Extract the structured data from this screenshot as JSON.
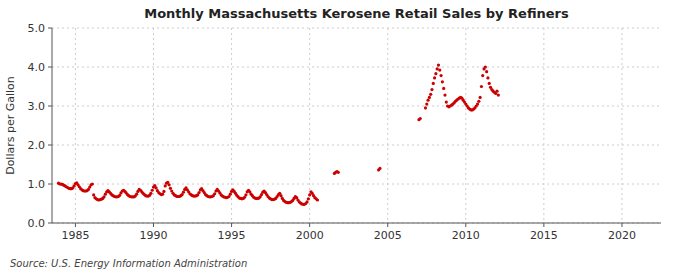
{
  "chart_data": {
    "type": "scatter",
    "title": "Monthly Massachusetts Kerosene Retail Sales by Refiners",
    "y_label": "Dollars per Gallon",
    "source": "Source: U.S. Energy Information Administration",
    "color": "#cc0000",
    "marker": "circle",
    "grid": true,
    "xlim": [
      1983.5,
      2022.5
    ],
    "ylim": [
      0.0,
      5.0
    ],
    "xticks": [
      1985,
      1990,
      1995,
      2000,
      2005,
      2010,
      2015,
      2020
    ],
    "yticks": [
      {
        "value": 0.0,
        "label": "0.0"
      },
      {
        "value": 1.0,
        "label": "1.0"
      },
      {
        "value": 2.0,
        "label": "2.0"
      },
      {
        "value": 3.0,
        "label": "3.0"
      },
      {
        "value": 4.0,
        "label": "4.0"
      },
      {
        "value": 5.0,
        "label": "5.0"
      }
    ],
    "x": [
      1983.917,
      1984.0,
      1984.083,
      1984.167,
      1984.25,
      1984.333,
      1984.417,
      1984.5,
      1984.583,
      1984.667,
      1984.75,
      1984.833,
      1984.917,
      1985.0,
      1985.083,
      1985.167,
      1985.25,
      1985.333,
      1985.417,
      1985.5,
      1985.583,
      1985.667,
      1985.75,
      1985.833,
      1985.917,
      1986.0,
      1986.083,
      1986.167,
      1986.25,
      1986.333,
      1986.417,
      1986.5,
      1986.583,
      1986.667,
      1986.75,
      1986.833,
      1986.917,
      1987.0,
      1987.083,
      1987.167,
      1987.25,
      1987.333,
      1987.417,
      1987.5,
      1987.583,
      1987.667,
      1987.75,
      1987.833,
      1987.917,
      1988.0,
      1988.083,
      1988.167,
      1988.25,
      1988.333,
      1988.417,
      1988.5,
      1988.583,
      1988.667,
      1988.75,
      1988.833,
      1988.917,
      1989.0,
      1989.083,
      1989.167,
      1989.25,
      1989.333,
      1989.417,
      1989.5,
      1989.583,
      1989.667,
      1989.75,
      1989.833,
      1989.917,
      1990.0,
      1990.083,
      1990.167,
      1990.25,
      1990.333,
      1990.417,
      1990.5,
      1990.583,
      1990.667,
      1990.75,
      1990.833,
      1990.917,
      1991.0,
      1991.083,
      1991.167,
      1991.25,
      1991.333,
      1991.417,
      1991.5,
      1991.583,
      1991.667,
      1991.75,
      1991.833,
      1991.917,
      1992.0,
      1992.083,
      1992.167,
      1992.25,
      1992.333,
      1992.417,
      1992.5,
      1992.583,
      1992.667,
      1992.75,
      1992.833,
      1992.917,
      1993.0,
      1993.083,
      1993.167,
      1993.25,
      1993.333,
      1993.417,
      1993.5,
      1993.583,
      1993.667,
      1993.75,
      1993.833,
      1993.917,
      1994.0,
      1994.083,
      1994.167,
      1994.25,
      1994.333,
      1994.417,
      1994.5,
      1994.583,
      1994.667,
      1994.75,
      1994.833,
      1994.917,
      1995.0,
      1995.083,
      1995.167,
      1995.25,
      1995.333,
      1995.417,
      1995.5,
      1995.583,
      1995.667,
      1995.75,
      1995.833,
      1995.917,
      1996.0,
      1996.083,
      1996.167,
      1996.25,
      1996.333,
      1996.417,
      1996.5,
      1996.583,
      1996.667,
      1996.75,
      1996.833,
      1996.917,
      1997.0,
      1997.083,
      1997.167,
      1997.25,
      1997.333,
      1997.417,
      1997.5,
      1997.583,
      1997.667,
      1997.75,
      1997.833,
      1997.917,
      1998.0,
      1998.083,
      1998.167,
      1998.25,
      1998.333,
      1998.417,
      1998.5,
      1998.583,
      1998.667,
      1998.75,
      1998.833,
      1998.917,
      1999.0,
      1999.083,
      1999.167,
      1999.25,
      1999.333,
      1999.417,
      1999.5,
      1999.583,
      1999.667,
      1999.75,
      1999.833,
      1999.917,
      2000.0,
      2000.083,
      2000.167,
      2000.25,
      2000.333,
      2000.417,
      2000.5,
      2001.583,
      2001.667,
      2001.75,
      2001.833,
      2004.417,
      2004.5,
      2007.0,
      2007.083,
      2007.417,
      2007.5,
      2007.583,
      2007.667,
      2007.75,
      2007.833,
      2007.917,
      2008.0,
      2008.083,
      2008.167,
      2008.25,
      2008.333,
      2008.417,
      2008.5,
      2008.583,
      2008.667,
      2008.75,
      2008.833,
      2008.917,
      2009.0,
      2009.083,
      2009.167,
      2009.25,
      2009.333,
      2009.417,
      2009.5,
      2009.583,
      2009.667,
      2009.75,
      2009.833,
      2009.917,
      2010.0,
      2010.083,
      2010.167,
      2010.25,
      2010.333,
      2010.417,
      2010.5,
      2010.583,
      2010.667,
      2010.75,
      2010.833,
      2010.917,
      2011.0,
      2011.083,
      2011.167,
      2011.25,
      2011.333,
      2011.417,
      2011.5,
      2011.583,
      2011.667,
      2011.75,
      2011.833,
      2011.917,
      2012.0,
      2012.083
    ],
    "values": [
      1.02,
      1.0,
      1.0,
      0.99,
      0.97,
      0.95,
      0.93,
      0.91,
      0.89,
      0.88,
      0.88,
      0.9,
      0.95,
      1.01,
      1.03,
      0.98,
      0.93,
      0.88,
      0.85,
      0.83,
      0.82,
      0.82,
      0.83,
      0.86,
      0.92,
      0.98,
      1.0,
      0.72,
      0.65,
      0.62,
      0.6,
      0.59,
      0.6,
      0.61,
      0.63,
      0.67,
      0.74,
      0.8,
      0.83,
      0.8,
      0.76,
      0.72,
      0.7,
      0.68,
      0.67,
      0.67,
      0.68,
      0.71,
      0.77,
      0.82,
      0.84,
      0.81,
      0.77,
      0.73,
      0.7,
      0.68,
      0.67,
      0.67,
      0.67,
      0.69,
      0.74,
      0.81,
      0.86,
      0.84,
      0.8,
      0.76,
      0.73,
      0.7,
      0.69,
      0.69,
      0.71,
      0.76,
      0.84,
      0.92,
      0.96,
      0.9,
      0.83,
      0.78,
      0.75,
      0.73,
      0.74,
      0.81,
      0.95,
      1.02,
      1.04,
      0.98,
      0.89,
      0.82,
      0.76,
      0.72,
      0.7,
      0.68,
      0.68,
      0.68,
      0.7,
      0.73,
      0.79,
      0.86,
      0.9,
      0.85,
      0.8,
      0.75,
      0.72,
      0.7,
      0.69,
      0.69,
      0.7,
      0.72,
      0.78,
      0.85,
      0.88,
      0.83,
      0.78,
      0.73,
      0.7,
      0.68,
      0.67,
      0.67,
      0.68,
      0.7,
      0.75,
      0.82,
      0.86,
      0.82,
      0.77,
      0.72,
      0.69,
      0.67,
      0.66,
      0.65,
      0.66,
      0.68,
      0.74,
      0.81,
      0.85,
      0.81,
      0.76,
      0.71,
      0.67,
      0.64,
      0.63,
      0.62,
      0.63,
      0.66,
      0.72,
      0.8,
      0.84,
      0.8,
      0.74,
      0.7,
      0.66,
      0.64,
      0.63,
      0.63,
      0.64,
      0.67,
      0.73,
      0.79,
      0.82,
      0.78,
      0.73,
      0.68,
      0.64,
      0.62,
      0.6,
      0.6,
      0.61,
      0.63,
      0.68,
      0.73,
      0.76,
      0.7,
      0.63,
      0.58,
      0.55,
      0.53,
      0.52,
      0.52,
      0.53,
      0.55,
      0.58,
      0.63,
      0.68,
      0.65,
      0.59,
      0.54,
      0.51,
      0.49,
      0.48,
      0.48,
      0.5,
      0.54,
      0.62,
      0.72,
      0.8,
      0.76,
      0.7,
      0.65,
      0.62,
      0.59,
      1.27,
      1.3,
      1.32,
      1.3,
      1.36,
      1.4,
      2.65,
      2.68,
      2.95,
      3.05,
      3.15,
      3.22,
      3.3,
      3.42,
      3.58,
      3.72,
      3.83,
      3.95,
      4.05,
      3.92,
      3.78,
      3.62,
      3.45,
      3.28,
      3.1,
      3.0,
      2.98,
      3.0,
      3.02,
      3.05,
      3.08,
      3.12,
      3.15,
      3.18,
      3.2,
      3.22,
      3.2,
      3.15,
      3.1,
      3.05,
      3.0,
      2.95,
      2.92,
      2.9,
      2.9,
      2.92,
      2.95,
      3.0,
      3.05,
      3.12,
      3.22,
      3.5,
      3.78,
      3.95,
      4.0,
      3.88,
      3.72,
      3.58,
      3.48,
      3.42,
      3.38,
      3.35,
      3.32,
      3.38,
      3.28
    ]
  }
}
